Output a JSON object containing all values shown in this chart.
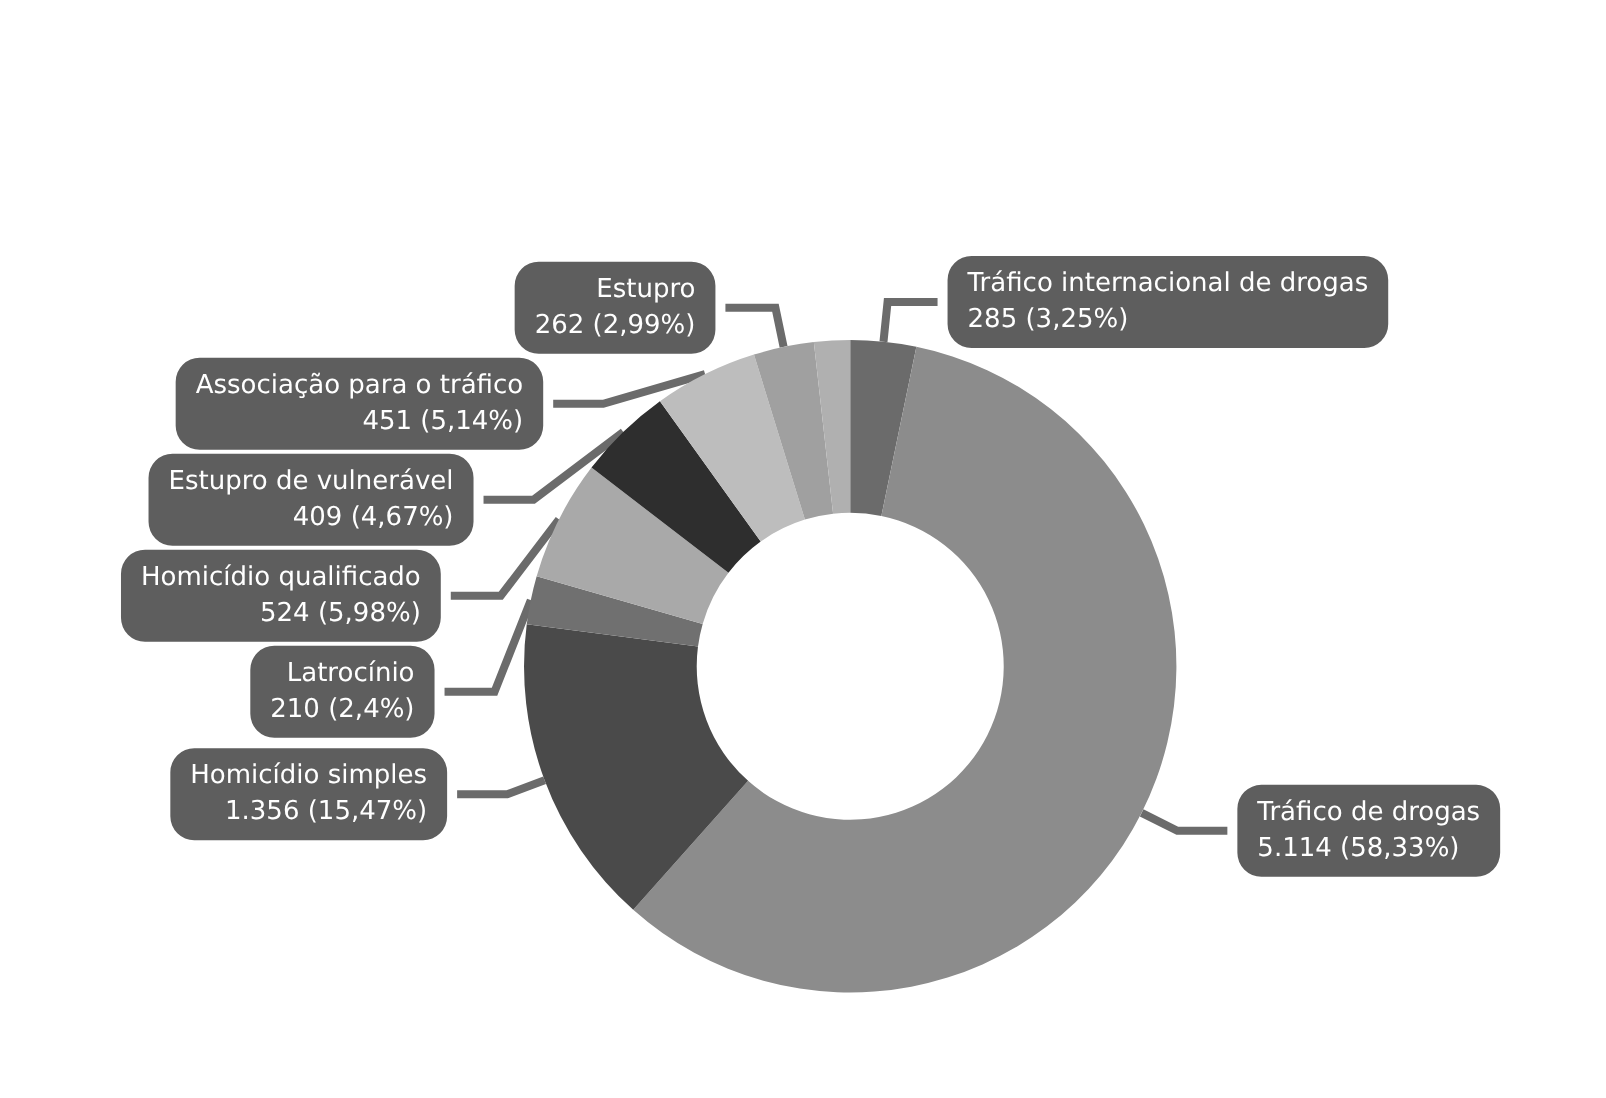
{
  "chart_data": {
    "type": "donut",
    "categories": [
      "Tráfico internacional de drogas",
      "Tráfico de drogas",
      "Homicídio simples",
      "Latrocínio",
      "Homicídio qualificado",
      "Estupro de vulnerável",
      "Associação para o tráfico",
      "Estupro",
      null
    ],
    "values": [
      285,
      5114,
      1356,
      210,
      524,
      409,
      451,
      262,
      156
    ],
    "value_labels": [
      "285 (3,25%)",
      "5.114 (58,33%)",
      "1.356 (15,47%)",
      "210 (2,4%)",
      "524 (5,98%)",
      "409 (4,67%)",
      "451 (5,14%)",
      "262 (2,99%)",
      null
    ],
    "colors": [
      "#6b6b6b",
      "#8c8c8c",
      "#4a4a4a",
      "#707070",
      "#a9a9a9",
      "#2e2e2e",
      "#bdbdbd",
      "#a0a0a0",
      "#b0b0b0"
    ],
    "legend": false
  }
}
